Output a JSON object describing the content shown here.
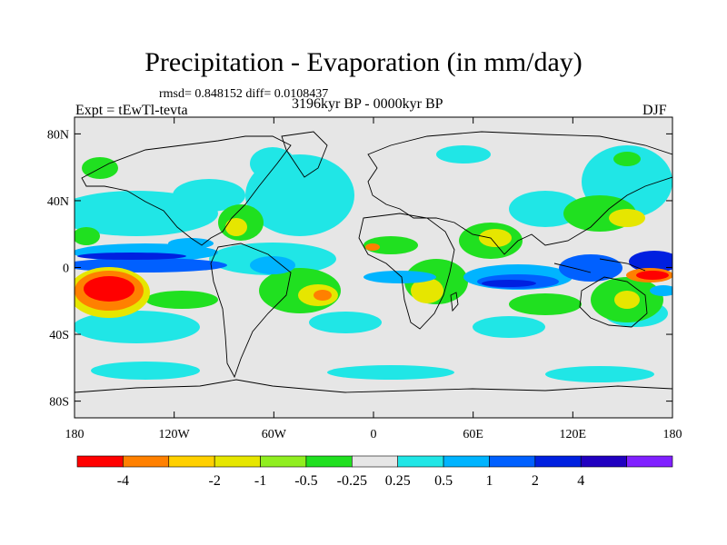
{
  "header": {
    "title": "Precipitation - Evaporation (in mm/day)",
    "stats": "rmsd= 0.848152 diff= 0.0108437",
    "expt": "Expt = tEwTl-tevta",
    "period": "3196kyr BP - 0000kyr BP",
    "season": "DJF"
  },
  "axes": {
    "lat_ticks": [
      {
        "label": "80N",
        "lat": 80
      },
      {
        "label": "40N",
        "lat": 40
      },
      {
        "label": "0",
        "lat": 0
      },
      {
        "label": "40S",
        "lat": -40
      },
      {
        "label": "80S",
        "lat": -80
      }
    ],
    "lon_ticks": [
      {
        "label": "180",
        "lon": -180
      },
      {
        "label": "120W",
        "lon": -120
      },
      {
        "label": "60W",
        "lon": -60
      },
      {
        "label": "0",
        "lon": 0
      },
      {
        "label": "60E",
        "lon": 60
      },
      {
        "label": "120E",
        "lon": 120
      },
      {
        "label": "180",
        "lon": 180
      }
    ],
    "lon_range": [
      -180,
      180
    ],
    "lat_range": [
      -90,
      90
    ]
  },
  "colorbar": {
    "colors": [
      "#ff0000",
      "#ff8000",
      "#ffd000",
      "#e6e600",
      "#90ee20",
      "#20e020",
      "#e6e6e6",
      "#20e6e6",
      "#00b4ff",
      "#0060ff",
      "#0020e0",
      "#2000c0",
      "#8020ff"
    ],
    "labels": [
      "-4",
      "-2",
      "-1",
      "-0.5",
      "-0.25",
      "0.25",
      "0.5",
      "1",
      "2",
      "4"
    ],
    "label_after_box": [
      1,
      3,
      4,
      5,
      6,
      7,
      8,
      9,
      10,
      11
    ]
  },
  "colors": {
    "land": "#e6e6e6",
    "coast": "#000000"
  }
}
